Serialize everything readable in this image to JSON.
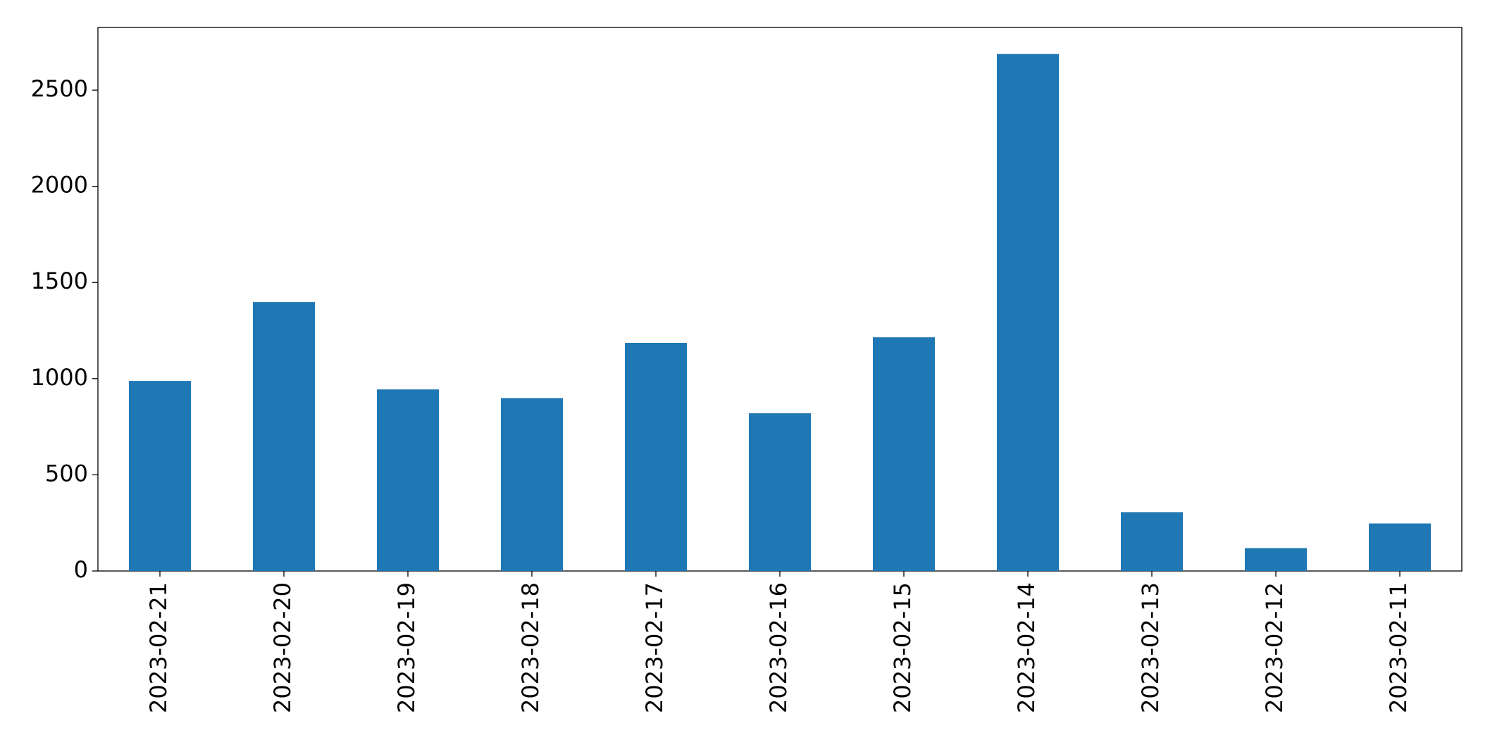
{
  "chart_data": {
    "type": "bar",
    "categories": [
      "2023-02-21",
      "2023-02-20",
      "2023-02-19",
      "2023-02-18",
      "2023-02-17",
      "2023-02-16",
      "2023-02-15",
      "2023-02-14",
      "2023-02-13",
      "2023-02-12",
      "2023-02-11"
    ],
    "values": [
      988,
      1398,
      944,
      899,
      1186,
      820,
      1215,
      2688,
      306,
      119,
      247
    ],
    "color": "#1f77b4",
    "ylim": [
      0,
      2826
    ],
    "yticks": [
      0,
      500,
      1000,
      1500,
      2000,
      2500
    ],
    "grid": false
  }
}
